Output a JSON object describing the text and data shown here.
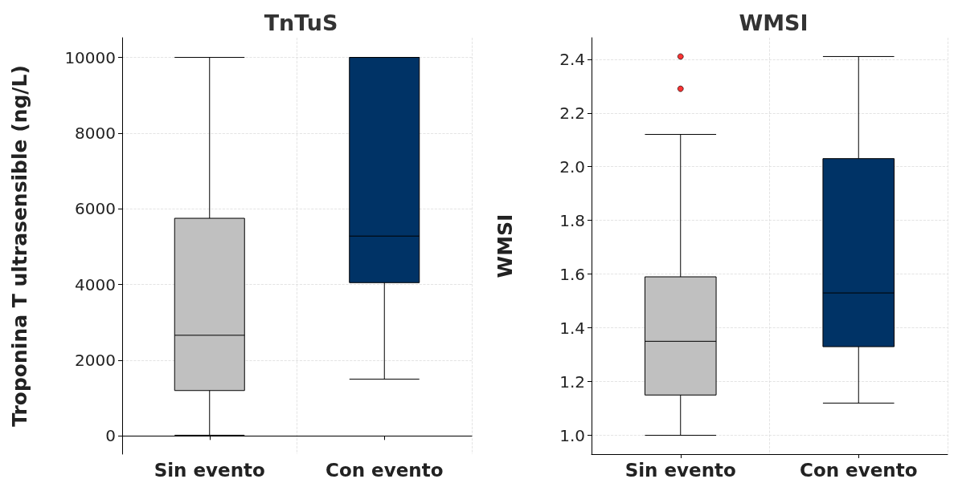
{
  "chart_data": [
    {
      "type": "box",
      "title": "TnTuS",
      "ylabel": "Troponina T ultrasensible (ng/L)",
      "categories": [
        "Sin evento",
        "Con evento"
      ],
      "ylim": [
        -480,
        10520
      ],
      "yticks": [
        0,
        2000,
        4000,
        6000,
        8000,
        10000
      ],
      "grid": true,
      "series": [
        {
          "colors": [
            "#c0c0c0",
            "#003366"
          ],
          "boxes": [
            {
              "low": 20,
              "q1": 1200,
              "median": 2660,
              "q3": 5750,
              "high": 10000
            },
            {
              "low": 1500,
              "q1": 4050,
              "median": 5280,
              "q3": 10000,
              "high": 10000
            }
          ]
        }
      ]
    },
    {
      "type": "box",
      "title": "WMSI",
      "ylabel": "WMSI",
      "categories": [
        "Sin evento",
        "Con evento"
      ],
      "ylim": [
        0.93,
        2.48
      ],
      "yticks": [
        {
          "value": 1.0,
          "label": "1.0"
        },
        {
          "value": 1.2,
          "label": "1.2"
        },
        {
          "value": 1.4,
          "label": "1.4"
        },
        {
          "value": 1.6,
          "label": "1.6"
        },
        {
          "value": 1.8,
          "label": "1.8"
        },
        {
          "value": 2.0,
          "label": "2.0"
        },
        {
          "value": 2.2,
          "label": "2.2"
        },
        {
          "value": 2.4,
          "label": "2.4"
        }
      ],
      "grid": true,
      "series": [
        {
          "colors": [
            "#c0c0c0",
            "#003366"
          ],
          "boxes": [
            {
              "low": 1.0,
              "q1": 1.15,
              "median": 1.35,
              "q3": 1.59,
              "high": 2.12
            },
            {
              "low": 1.12,
              "q1": 1.33,
              "median": 1.53,
              "q3": 2.03,
              "high": 2.41
            }
          ]
        },
        {
          "type": "scatter",
          "color": "#ff0000",
          "x": [
            "Sin evento",
            "Sin evento"
          ],
          "values": [
            2.29,
            2.41
          ],
          "marker": "circle"
        }
      ]
    }
  ]
}
